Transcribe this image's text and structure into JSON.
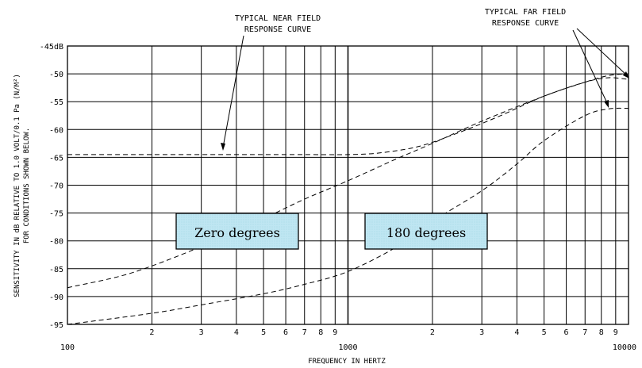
{
  "chart_data": {
    "type": "line",
    "x_scale": "log",
    "xlim": [
      100,
      10000
    ],
    "ylim": [
      -95,
      -45
    ],
    "grid": true,
    "xlabel": "FREQUENCY IN HERTZ",
    "ylabel": "SENSITIVITY IN dB RELATIVE TO 1.0 VOLT/0.1 Pa (N/M²)",
    "ylabel2": "FOR CONDITIONS SHOWN BELOW.",
    "x_ticks": [
      100,
      1000,
      10000
    ],
    "x_tick_labels": [
      "100",
      "1000",
      "10000"
    ],
    "x_minor_labels": [
      "2",
      "3",
      "4",
      "5",
      "6",
      "7",
      "8",
      "9"
    ],
    "y_ticks": [
      -45,
      -50,
      -55,
      -60,
      -65,
      -70,
      -75,
      -80,
      -85,
      -90,
      -95
    ],
    "y_tick_labels": [
      "-45dB",
      "-50",
      "-55",
      "-60",
      "-65",
      "-70",
      "-75",
      "-80",
      "-85",
      "-90",
      "-95"
    ],
    "series": [
      {
        "x": [
          100,
          150,
          200,
          300,
          400,
          500,
          700,
          1000,
          1300,
          1800,
          2500,
          3500,
          5000,
          7000,
          8500,
          10000
        ],
        "y": [
          -64.5,
          -64.5,
          -64.5,
          -64.5,
          -64.5,
          -64.5,
          -64.5,
          -64.5,
          -64.2,
          -63.0,
          -60.5,
          -57.5,
          -54.0,
          -51.5,
          -50.3,
          -50.0
        ]
      },
      {
        "x": [
          100,
          150,
          200,
          300,
          500,
          700,
          1000,
          1500,
          2000,
          3000,
          5000,
          7000,
          8500,
          10000
        ],
        "y": [
          -88.4,
          -86.5,
          -84.5,
          -81.0,
          -76.0,
          -72.5,
          -69.2,
          -65.2,
          -62.5,
          -58.5,
          -54.0,
          -51.5,
          -50.7,
          -51.0
        ]
      },
      {
        "x": [
          100,
          200,
          300,
          500,
          700,
          1000,
          1500,
          2000,
          3000,
          4000,
          5000,
          7000,
          8500,
          10000
        ],
        "y": [
          -95.0,
          -93.0,
          -91.5,
          -89.5,
          -87.8,
          -85.5,
          -81.0,
          -76.5,
          -71.0,
          -66.2,
          -62.0,
          -57.5,
          -56.3,
          -56.2
        ]
      }
    ],
    "annotations": [
      {
        "text": [
          "TYPICAL NEAR FIELD",
          "RESPONSE CURVE"
        ]
      },
      {
        "text": [
          "TYPICAL FAR FIELD",
          "RESPONSE CURVE"
        ]
      }
    ],
    "boxes": [
      {
        "text": "Zero degrees"
      },
      {
        "text": "180 degrees"
      }
    ]
  }
}
